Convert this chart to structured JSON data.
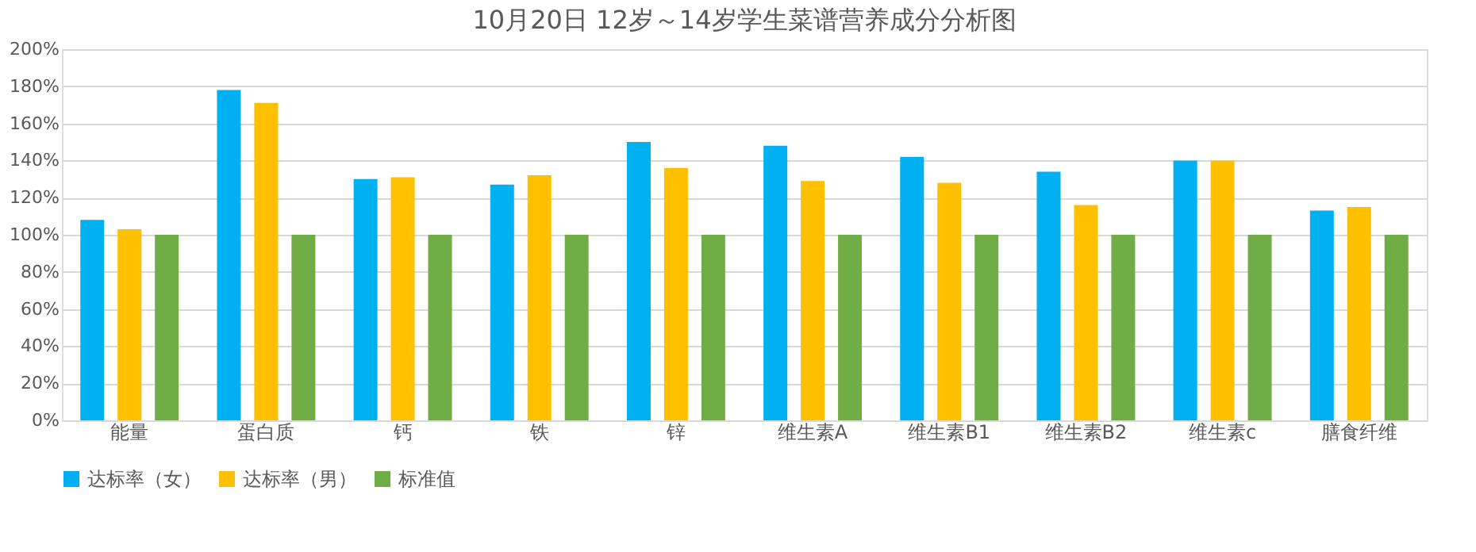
{
  "chart_data": {
    "type": "bar",
    "title": "10月20日 12岁～14岁学生菜谱营养成分分析图",
    "categories": [
      "能量",
      "蛋白质",
      "钙",
      "铁",
      "锌",
      "维生素A",
      "维生素B1",
      "维生素B2",
      "维生素c",
      "膳食纤维"
    ],
    "series": [
      {
        "name": "达标率（女）",
        "color": "#00b0f0",
        "values": [
          108,
          178,
          130,
          127,
          150,
          148,
          142,
          134,
          140,
          113
        ]
      },
      {
        "name": "达标率（男）",
        "color": "#ffc000",
        "values": [
          103,
          171,
          131,
          132,
          136,
          129,
          128,
          116,
          140,
          115
        ]
      },
      {
        "name": "标准值",
        "color": "#70ad47",
        "values": [
          100,
          100,
          100,
          100,
          100,
          100,
          100,
          100,
          100,
          100
        ]
      }
    ],
    "ylim": [
      0,
      200
    ],
    "yticks": [
      {
        "value": 0,
        "label": "0%"
      },
      {
        "value": 20,
        "label": "20%"
      },
      {
        "value": 40,
        "label": "40%"
      },
      {
        "value": 60,
        "label": "60%"
      },
      {
        "value": 80,
        "label": "80%"
      },
      {
        "value": 100,
        "label": "100%"
      },
      {
        "value": 120,
        "label": "120%"
      },
      {
        "value": 140,
        "label": "140%"
      },
      {
        "value": 160,
        "label": "160%"
      },
      {
        "value": 180,
        "label": "180%"
      },
      {
        "value": 200,
        "label": "200%"
      }
    ],
    "grid": "y",
    "legend": "bottom"
  }
}
